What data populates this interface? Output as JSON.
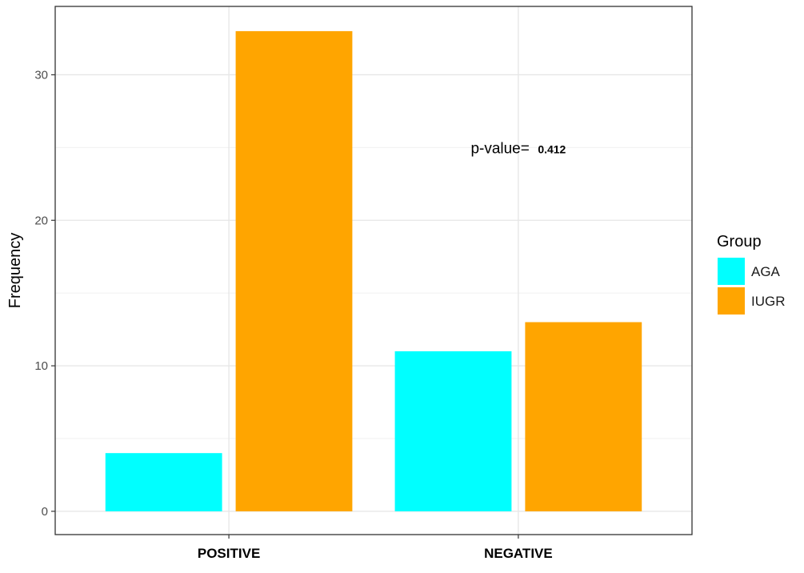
{
  "chart_data": {
    "type": "bar",
    "categories": [
      "POSITIVE",
      "NEGATIVE"
    ],
    "series": [
      {
        "name": "AGA",
        "values": [
          4,
          11
        ],
        "color": "#00FFFF"
      },
      {
        "name": "IUGR",
        "values": [
          33,
          13
        ],
        "color": "#FFA500"
      }
    ],
    "xlabel": "",
    "ylabel": "Frequency",
    "ylim": [
      -1.6,
      34.7
    ],
    "yticks": [
      0,
      10,
      20,
      30
    ],
    "grid": true,
    "legend": {
      "title": "Group",
      "position": "right"
    },
    "annotation": {
      "label": "p-value=",
      "value": "0.412",
      "x_category": "NEGATIVE",
      "y": 25
    }
  }
}
